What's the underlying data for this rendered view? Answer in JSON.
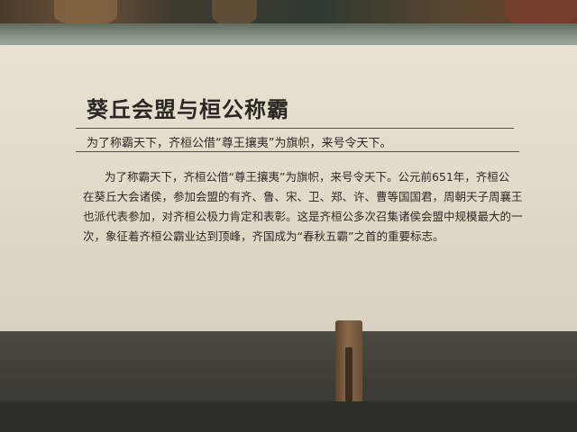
{
  "placard": {
    "title": "葵丘会盟与桓公称霸",
    "subtitle": "为了称霸天下，齐桓公借“尊王攘夷”为旗帜，来号令天下。",
    "body_lines": [
      "为了称霸天下，齐桓公借“尊王攘夷”为旗帜，来号令天下。公元前651年，齐桓公",
      "在葵丘大会诸侯，参加会盟的有齐、鲁、宋、卫、郑、许、曹等国国君，周朝天子周襄王",
      "也派代表参加，对齐桓公极力肯定和表彰。这是齐桓公多次召集诸侯会盟中规模最大的一",
      "次，象征着齐桓公霸业达到顶峰，齐国成为“春秋五霸”之首的重要标志。"
    ]
  },
  "colors": {
    "panel": "#e3dccb",
    "text": "#2e2a25",
    "wall": "#3e3e37"
  }
}
